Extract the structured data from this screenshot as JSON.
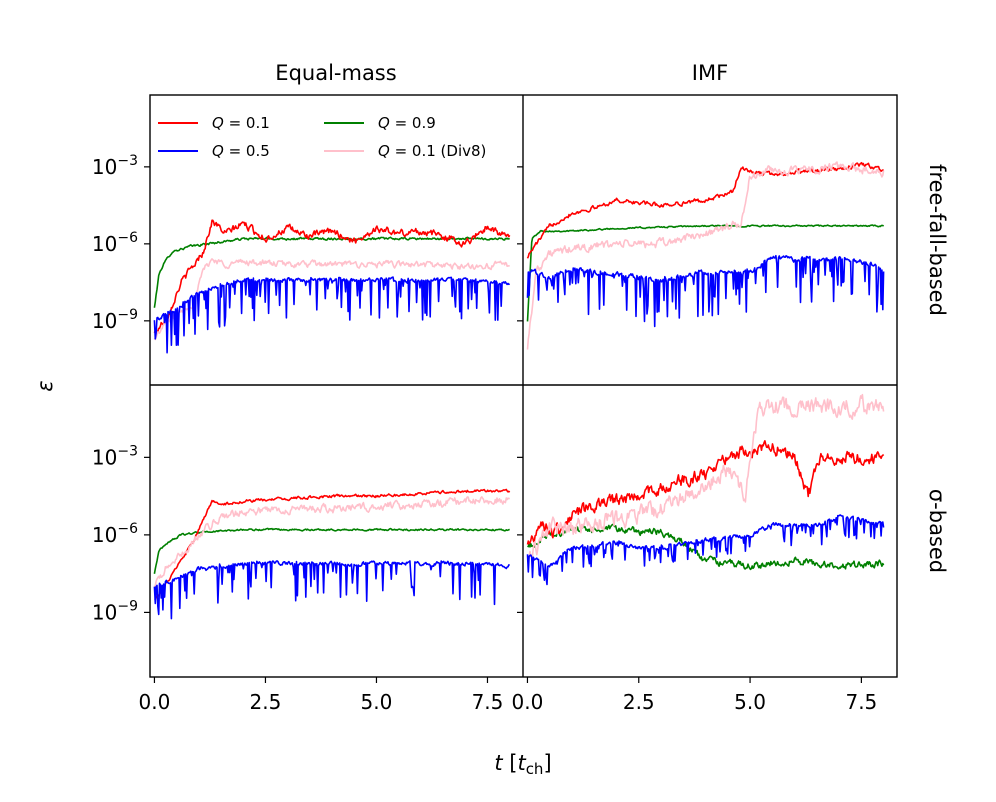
{
  "chart_data": {
    "type": "line",
    "xlabel": "t [t_ch]",
    "xlabel_parts": {
      "t": "t",
      "open": " [",
      "t_ch_t": "t",
      "ch": "ch",
      "close": "]"
    },
    "ylabel": "ε",
    "column_titles": [
      "Equal-mass",
      "IMF"
    ],
    "row_titles": [
      "free-fall-based",
      "σ-based"
    ],
    "xlim": [
      -0.1,
      8.3
    ],
    "ylim_log10": [
      -11.5,
      -0.2
    ],
    "x_ticks": [
      0.0,
      2.5,
      5.0,
      7.5
    ],
    "x_tick_labels": [
      "0.0",
      "2.5",
      "5.0",
      "7.5"
    ],
    "y_ticks_log10": [
      -9,
      -6,
      -3
    ],
    "y_tick_labels": [
      {
        "base": "10",
        "exp": "−9"
      },
      {
        "base": "10",
        "exp": "−6"
      },
      {
        "base": "10",
        "exp": "−3"
      }
    ],
    "legend": [
      {
        "name": "Q = 0.1",
        "sym": "Q",
        "text": " = 0.1",
        "color": "#ff0000"
      },
      {
        "name": "Q = 0.5",
        "sym": "Q",
        "text": " = 0.5",
        "color": "#0000ff"
      },
      {
        "name": "Q = 0.9",
        "sym": "Q",
        "text": " = 0.9",
        "color": "#008000"
      },
      {
        "name": "Q = 0.1 (Div8)",
        "sym": "Q",
        "text": " = 0.1 (Div8)",
        "color": "#ffc0cb"
      }
    ],
    "series_order": [
      "Q0.9",
      "Q0.1",
      "Div8",
      "Q0.5"
    ],
    "series_colors": {
      "Q0.1": "#ff0000",
      "Q0.5": "#0000ff",
      "Q0.9": "#008000",
      "Div8": "#ffc0cb"
    },
    "panels": [
      {
        "id": "equal-mass-free-fall",
        "column": "Equal-mass",
        "row": "free-fall-based",
        "series": {
          "Q0.1": {
            "x": [
              0.0,
              0.3,
              0.6,
              0.9,
              1.1,
              1.3,
              1.6,
              2.0,
              2.5,
              3.0,
              3.5,
              4.0,
              4.5,
              5.0,
              5.5,
              6.0,
              6.5,
              7.0,
              7.5,
              8.0
            ],
            "y": [
              -9.5,
              -8.8,
              -7.5,
              -6.8,
              -6.3,
              -5.1,
              -5.6,
              -5.2,
              -5.8,
              -5.4,
              -5.7,
              -5.5,
              -5.9,
              -5.4,
              -5.6,
              -5.5,
              -5.7,
              -6.0,
              -5.3,
              -5.8
            ],
            "noise": 0.25
          },
          "Q0.5": {
            "x": [
              0.0,
              0.5,
              1.0,
              1.5,
              2.0,
              3.0,
              4.0,
              5.0,
              6.0,
              7.0,
              8.0
            ],
            "y": [
              -9.0,
              -8.5,
              -7.9,
              -7.6,
              -7.4,
              -7.4,
              -7.4,
              -7.4,
              -7.4,
              -7.4,
              -7.5
            ],
            "noise": 0.15,
            "dips": 1.6
          },
          "Q0.9": {
            "x": [
              0.0,
              0.1,
              0.2,
              0.4,
              0.8,
              1.2,
              2.0,
              4.0,
              6.0,
              8.0
            ],
            "y": [
              -8.5,
              -7.2,
              -6.8,
              -6.3,
              -6.1,
              -6.0,
              -5.8,
              -5.8,
              -5.8,
              -5.8
            ],
            "noise": 0.08
          },
          "Div8": {
            "x": [
              0.0,
              0.3,
              0.6,
              0.9,
              1.1,
              1.3,
              1.6,
              2.0,
              3.0,
              4.0,
              5.0,
              6.0,
              7.0,
              8.0
            ],
            "y": [
              -9.7,
              -9.0,
              -8.6,
              -8.3,
              -7.0,
              -6.6,
              -6.8,
              -6.7,
              -6.8,
              -6.8,
              -6.8,
              -6.8,
              -6.9,
              -6.8
            ],
            "noise": 0.22
          }
        }
      },
      {
        "id": "imf-free-fall",
        "column": "IMF",
        "row": "free-fall-based",
        "series": {
          "Q0.1": {
            "x": [
              0.0,
              0.2,
              0.5,
              1.0,
              1.5,
              2.0,
              3.0,
              4.0,
              4.6,
              4.8,
              5.0,
              5.5,
              6.0,
              7.0,
              7.5,
              8.0
            ],
            "y": [
              -6.5,
              -6.0,
              -5.3,
              -4.8,
              -4.6,
              -4.3,
              -4.5,
              -4.3,
              -4.0,
              -3.0,
              -3.2,
              -3.3,
              -3.2,
              -3.1,
              -2.9,
              -3.1
            ],
            "noise": 0.15
          },
          "Q0.5": {
            "x": [
              0.0,
              0.5,
              1.0,
              2.0,
              3.0,
              4.0,
              5.0,
              5.5,
              6.0,
              7.0,
              7.5,
              8.0
            ],
            "y": [
              -7.0,
              -7.3,
              -7.0,
              -7.2,
              -7.4,
              -7.1,
              -7.1,
              -6.5,
              -6.6,
              -6.6,
              -6.7,
              -7.0
            ],
            "noise": 0.18,
            "dips": 1.8
          },
          "Q0.9": {
            "x": [
              0.0,
              0.1,
              0.3,
              1.0,
              2.0,
              4.0,
              6.0,
              8.0
            ],
            "y": [
              -9.0,
              -5.8,
              -5.5,
              -5.5,
              -5.4,
              -5.3,
              -5.3,
              -5.3
            ],
            "noise": 0.05
          },
          "Div8": {
            "x": [
              0.0,
              0.2,
              0.5,
              1.0,
              2.0,
              3.0,
              4.0,
              4.8,
              5.0,
              5.5,
              6.0,
              7.0,
              8.0
            ],
            "y": [
              -10.0,
              -7.0,
              -6.4,
              -6.2,
              -6.0,
              -6.0,
              -5.6,
              -5.2,
              -3.4,
              -3.1,
              -3.2,
              -3.0,
              -3.2
            ],
            "noise": 0.3
          }
        }
      },
      {
        "id": "equal-mass-sigma",
        "column": "Equal-mass",
        "row": "σ-based",
        "series": {
          "Q0.1": {
            "x": [
              0.0,
              0.3,
              0.6,
              0.9,
              1.1,
              1.3,
              1.6,
              2.0,
              3.0,
              4.0,
              5.0,
              6.0,
              7.0,
              8.0
            ],
            "y": [
              -8.5,
              -7.8,
              -7.0,
              -6.2,
              -5.4,
              -4.7,
              -4.8,
              -4.7,
              -4.6,
              -4.5,
              -4.5,
              -4.4,
              -4.3,
              -4.3
            ],
            "noise": 0.1
          },
          "Q0.5": {
            "x": [
              0.0,
              0.5,
              1.0,
              2.0,
              3.0,
              4.0,
              5.0,
              6.0,
              7.0,
              8.0
            ],
            "y": [
              -8.0,
              -7.7,
              -7.3,
              -7.1,
              -7.1,
              -7.1,
              -7.1,
              -7.1,
              -7.1,
              -7.2
            ],
            "noise": 0.15,
            "dips": 1.5
          },
          "Q0.9": {
            "x": [
              0.0,
              0.1,
              0.3,
              0.6,
              1.0,
              2.0,
              4.0,
              8.0
            ],
            "y": [
              -7.5,
              -6.6,
              -6.3,
              -6.0,
              -5.9,
              -5.8,
              -5.8,
              -5.8
            ],
            "noise": 0.06
          },
          "Div8": {
            "x": [
              0.0,
              0.3,
              0.6,
              1.0,
              1.5,
              2.0,
              3.0,
              4.0,
              5.0,
              6.0,
              7.0,
              8.0
            ],
            "y": [
              -8.0,
              -7.2,
              -6.8,
              -6.0,
              -5.3,
              -5.1,
              -5.0,
              -5.0,
              -4.9,
              -4.8,
              -4.7,
              -4.6
            ],
            "noise": 0.28
          }
        }
      },
      {
        "id": "imf-sigma",
        "column": "IMF",
        "row": "σ-based",
        "series": {
          "Q0.1": {
            "x": [
              0.0,
              0.3,
              0.6,
              1.0,
              1.5,
              2.0,
              3.0,
              4.0,
              4.5,
              5.0,
              5.5,
              6.0,
              6.3,
              6.6,
              7.0,
              8.0
            ],
            "y": [
              -6.5,
              -5.5,
              -6.0,
              -5.2,
              -4.9,
              -4.7,
              -4.2,
              -3.6,
              -2.9,
              -2.7,
              -2.6,
              -2.9,
              -4.5,
              -3.0,
              -3.0,
              -3.0
            ],
            "noise": 0.45
          },
          "Q0.5": {
            "x": [
              0.0,
              0.5,
              1.0,
              2.0,
              2.5,
              3.0,
              4.0,
              5.0,
              5.5,
              6.5,
              7.0,
              8.0
            ],
            "y": [
              -6.8,
              -7.2,
              -6.5,
              -6.3,
              -6.5,
              -6.5,
              -6.2,
              -6.0,
              -5.6,
              -5.6,
              -5.3,
              -5.6
            ],
            "noise": 0.15,
            "dips": 0.8
          },
          "Q0.9": {
            "x": [
              0.0,
              0.5,
              1.0,
              2.0,
              3.0,
              3.5,
              4.0,
              5.0,
              6.0,
              7.0,
              8.0
            ],
            "y": [
              -6.5,
              -6.0,
              -5.8,
              -5.8,
              -5.9,
              -6.3,
              -7.0,
              -7.2,
              -7.0,
              -7.2,
              -7.1
            ],
            "noise": 0.25
          },
          "Div8": {
            "x": [
              0.0,
              0.5,
              1.0,
              2.0,
              3.0,
              4.0,
              4.5,
              4.9,
              5.2,
              5.5,
              6.0,
              7.0,
              8.0
            ],
            "y": [
              -7.0,
              -5.7,
              -5.8,
              -5.4,
              -5.0,
              -4.0,
              -3.4,
              -4.5,
              -1.0,
              -1.0,
              -1.0,
              -1.0,
              -1.0
            ],
            "noise": 0.6
          }
        }
      }
    ]
  }
}
